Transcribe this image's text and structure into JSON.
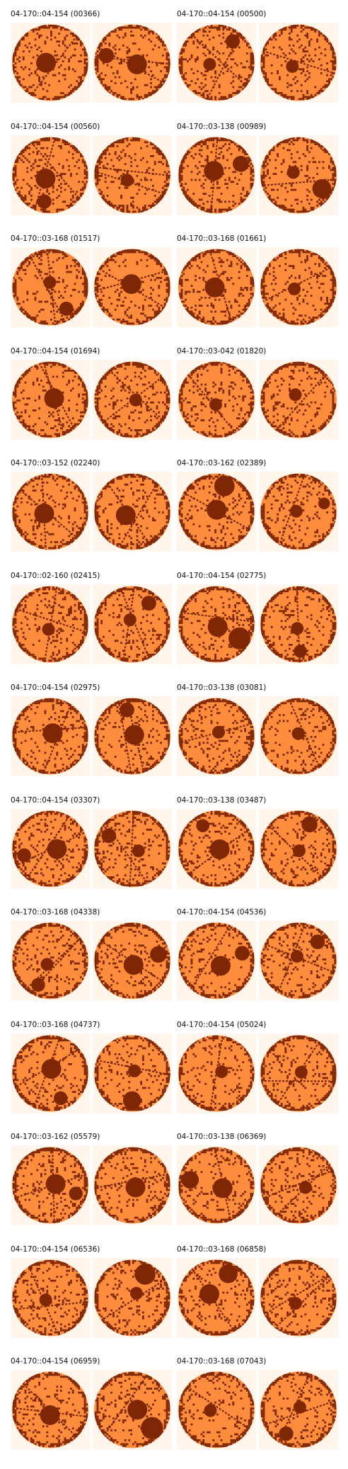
{
  "colors": {
    "panel_background": "#fff5eb",
    "wafer_fill": "#fd8d3c",
    "defect": "#7f2704",
    "title_text": "#111111"
  },
  "wafers": [
    {
      "title": "04-170::04-154 (00366)"
    },
    {
      "title": "04-170::04-154 (00500)"
    },
    {
      "title": "04-170::04-154 (00560)"
    },
    {
      "title": "04-170::03-138 (00989)"
    },
    {
      "title": "04-170::03-168 (01517)"
    },
    {
      "title": "04-170::03-168 (01661)"
    },
    {
      "title": "04-170::04-154 (01694)"
    },
    {
      "title": "04-170::03-042 (01820)"
    },
    {
      "title": "04-170::03-152 (02240)"
    },
    {
      "title": "04-170::03-162 (02389)"
    },
    {
      "title": "04-170::02-160 (02415)"
    },
    {
      "title": "04-170::04-154 (02775)"
    },
    {
      "title": "04-170::04-154 (02975)"
    },
    {
      "title": "04-170::03-138 (03081)"
    },
    {
      "title": "04-170::04-154 (03307)"
    },
    {
      "title": "04-170::03-138 (03487)"
    },
    {
      "title": "04-170::03-168 (04338)"
    },
    {
      "title": "04-170::04-154 (04536)"
    },
    {
      "title": "04-170::03-168 (04737)"
    },
    {
      "title": "04-170::04-154 (05024)"
    },
    {
      "title": "04-170::03-162 (05579)"
    },
    {
      "title": "04-170::03-138 (06369)"
    },
    {
      "title": "04-170::04-154 (06536)"
    },
    {
      "title": "04-170::03-168 (06858)"
    },
    {
      "title": "04-170::04-154 (06959)"
    },
    {
      "title": "04-170::03-168 (07043)"
    }
  ]
}
